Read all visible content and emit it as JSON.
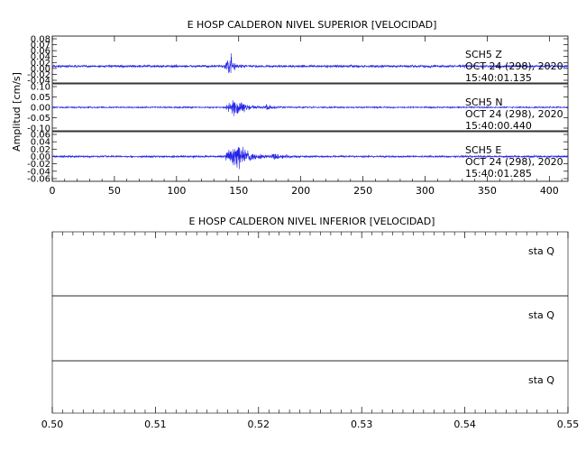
{
  "chart_data": [
    {
      "type": "line",
      "title": "E HOSP CALDERON NIVEL SUPERIOR [VELOCIDAD]",
      "ylabel": "Amplitud [cm/s]",
      "xlabel": "",
      "xlim": [
        0,
        415
      ],
      "x_ticks": [
        "0",
        "50",
        "100",
        "150",
        "200",
        "250",
        "300",
        "350",
        "400"
      ],
      "grid": false,
      "legend": "none",
      "line_color": "#2323e6",
      "traces": [
        {
          "station": "SCH5",
          "component": "Z",
          "date": "OCT 24 (298), 2020",
          "time": "15:40:01.135",
          "ylim": [
            -0.05,
            0.09
          ],
          "y_ticks": [
            "0.08",
            "0.07",
            "0.06",
            "0.04",
            "0.02",
            "0.00",
            "-0.02",
            "-0.04"
          ],
          "noise": 0.0045,
          "bursts": [
            {
              "start": 137,
              "peak": 142,
              "end": 158,
              "amp": 0.022
            },
            {
              "start": 143,
              "peak": 143.6,
              "end": 145,
              "amp": 0.075
            }
          ]
        },
        {
          "station": "SCH5",
          "component": "N",
          "date": "OCT 24 (298), 2020",
          "time": "15:40:00.440",
          "ylim": [
            -0.11,
            0.11
          ],
          "y_ticks": [
            "0.10",
            "0.05",
            "0.00",
            "-0.05",
            "-0.10"
          ],
          "noise": 0.004,
          "bursts": [
            {
              "start": 138,
              "peak": 146,
              "end": 170,
              "amp": 0.055
            },
            {
              "start": 170,
              "peak": 172,
              "end": 190,
              "amp": 0.012
            }
          ]
        },
        {
          "station": "SCH5",
          "component": "E",
          "date": "OCT 24 (298), 2020",
          "time": "15:40:01.285",
          "ylim": [
            -0.075,
            0.075
          ],
          "y_ticks": [
            "0.06",
            "0.04",
            "0.02",
            "0.00",
            "-0.02",
            "-0.04",
            "-0.06"
          ],
          "noise": 0.0035,
          "bursts": [
            {
              "start": 138,
              "peak": 147,
              "end": 175,
              "amp": 0.05
            },
            {
              "start": 175,
              "peak": 178,
              "end": 200,
              "amp": 0.01
            }
          ]
        }
      ]
    },
    {
      "type": "line",
      "title": "E HOSP CALDERON NIVEL INFERIOR [VELOCIDAD]",
      "xlabel": "",
      "xlim": [
        0.5,
        0.55
      ],
      "x_ticks": [
        "0.50",
        "0.51",
        "0.52",
        "0.53",
        "0.54",
        "0.55"
      ],
      "grid": false,
      "legend": "none",
      "traces": [
        {
          "label": "sta  Q"
        },
        {
          "label": "sta  Q"
        },
        {
          "label": "sta  Q"
        }
      ]
    }
  ]
}
